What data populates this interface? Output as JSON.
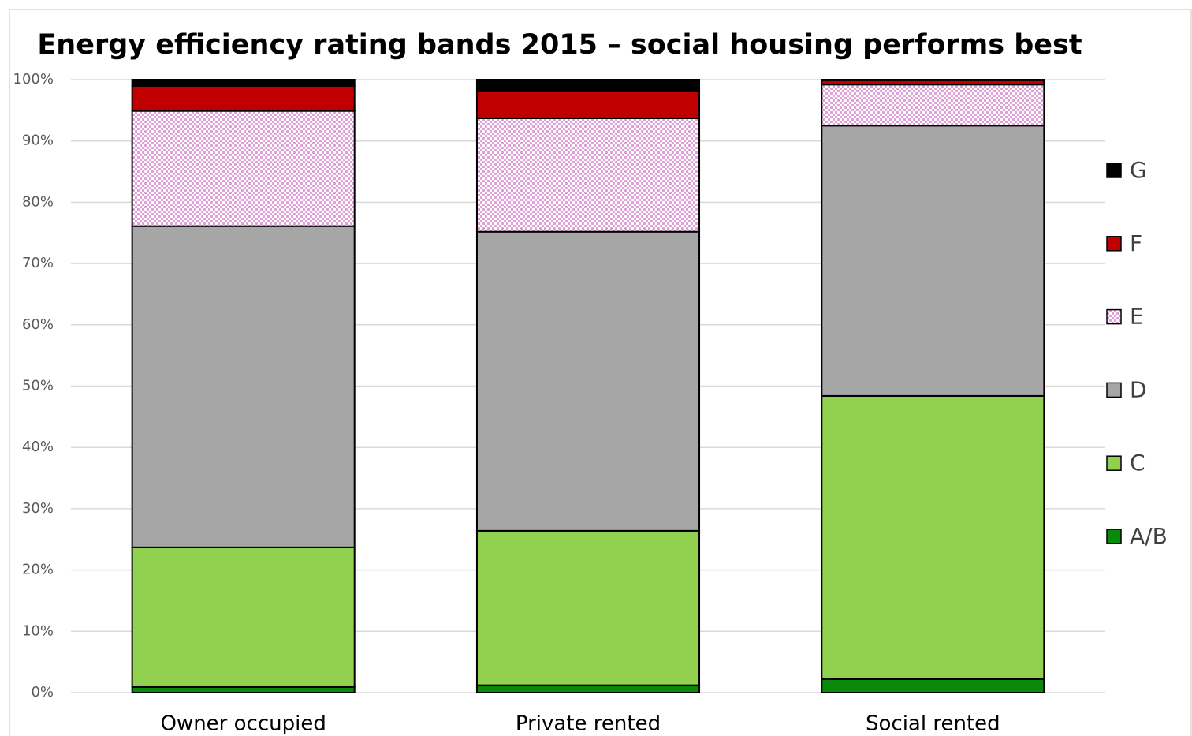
{
  "chart_data": {
    "type": "stacked_bar",
    "title": "Energy efficiency rating bands 2015 – social housing performs best",
    "categories": [
      "Owner occupied",
      "Private rented",
      "Social rented"
    ],
    "series": [
      {
        "name": "A/B",
        "color": "#0a8a0a",
        "values": [
          0.9,
          1.2,
          2.2
        ]
      },
      {
        "name": "C",
        "color": "#92d050",
        "values": [
          22.8,
          25.2,
          46.2
        ]
      },
      {
        "name": "D",
        "color": "#a6a6a6",
        "values": [
          52.4,
          48.8,
          44.1
        ]
      },
      {
        "name": "E",
        "color": "#e0a0d8",
        "pattern": "checkerboard",
        "values": [
          18.8,
          18.5,
          6.7
        ]
      },
      {
        "name": "F",
        "color": "#c00000",
        "values": [
          4.1,
          4.4,
          0.7
        ]
      },
      {
        "name": "G",
        "color": "#000000",
        "values": [
          1.0,
          1.9,
          0.1
        ]
      }
    ],
    "ylim": [
      0,
      100
    ],
    "yticks": [
      {
        "value": 0,
        "label": "0%"
      },
      {
        "value": 10,
        "label": "10%"
      },
      {
        "value": 20,
        "label": "20%"
      },
      {
        "value": 30,
        "label": "30%"
      },
      {
        "value": 40,
        "label": "40%"
      },
      {
        "value": 50,
        "label": "50%"
      },
      {
        "value": 60,
        "label": "60%"
      },
      {
        "value": 70,
        "label": "70%"
      },
      {
        "value": 80,
        "label": "80%"
      },
      {
        "value": 90,
        "label": "90%"
      },
      {
        "value": 100,
        "label": "100%"
      }
    ],
    "grid": true,
    "legend": "right"
  }
}
